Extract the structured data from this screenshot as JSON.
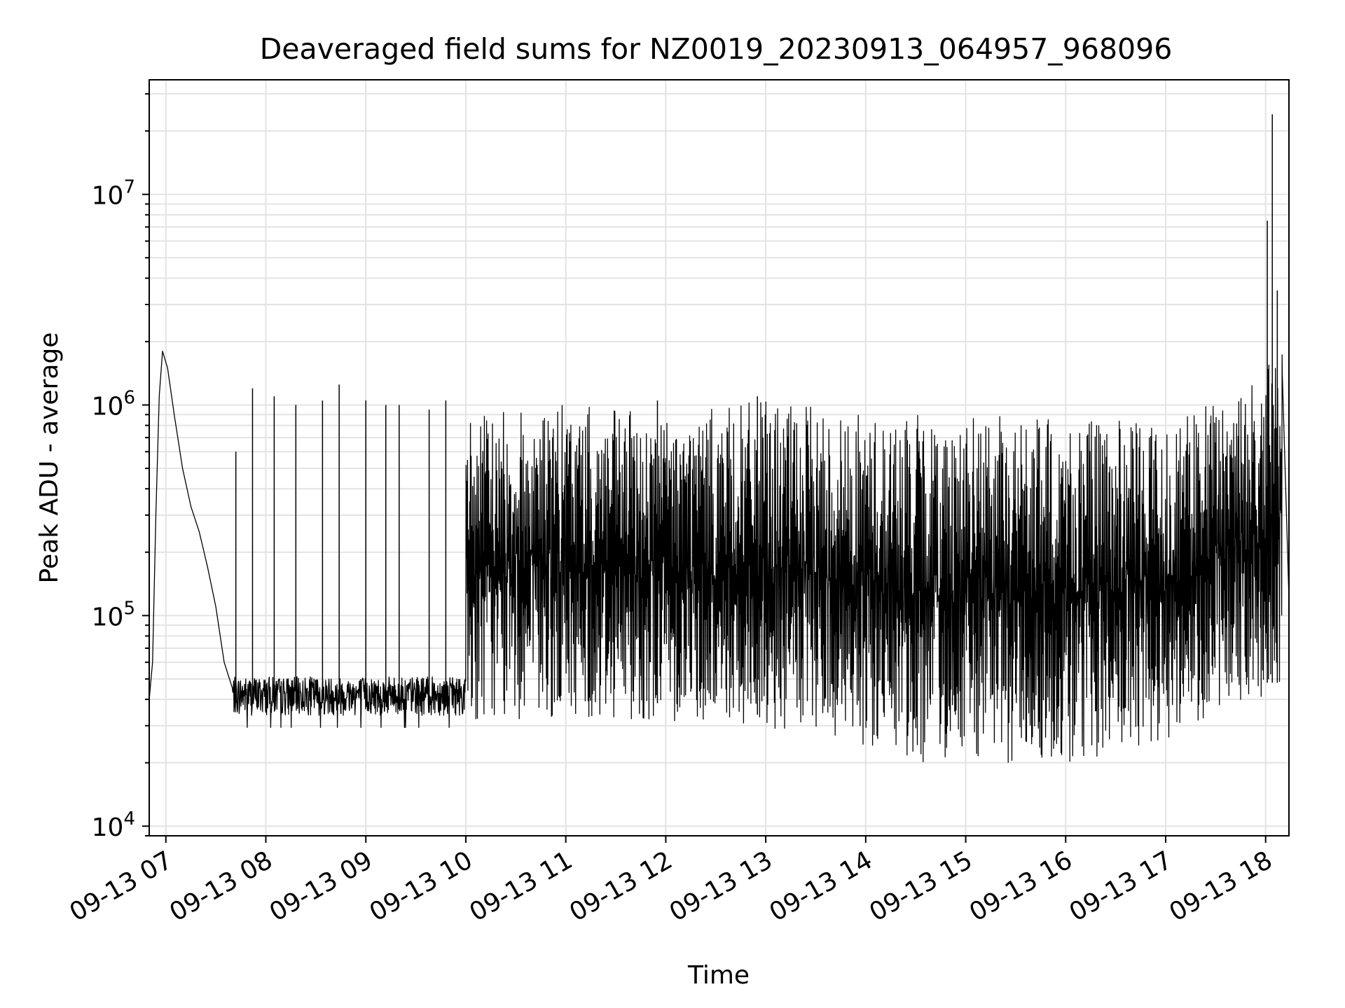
{
  "chart_data": {
    "type": "line",
    "title": "Deaveraged field sums for NZ0019_20230913_064957_968096",
    "xlabel": "Time",
    "ylabel": "Peak ADU - average",
    "y_scale": "log",
    "ylim": [
      9000,
      35000000
    ],
    "xlim": [
      "2023-09-13 06:50",
      "2023-09-13 18:14"
    ],
    "grid": true,
    "line_color": "#000000",
    "x_ticks": [
      "09-13 07",
      "09-13 08",
      "09-13 09",
      "09-13 10",
      "09-13 11",
      "09-13 12",
      "09-13 13",
      "09-13 14",
      "09-13 15",
      "09-13 16",
      "09-13 17",
      "09-13 18"
    ],
    "y_ticks": [
      {
        "value": 10000,
        "base": "10",
        "exp": "4"
      },
      {
        "value": 100000,
        "base": "10",
        "exp": "5"
      },
      {
        "value": 1000000,
        "base": "10",
        "exp": "6"
      },
      {
        "value": 10000000,
        "base": "10",
        "exp": "7"
      }
    ],
    "series": [
      {
        "x": [
          "2023-09-13 06:50",
          "2023-09-13 06:52",
          "2023-09-13 06:54",
          "2023-09-13 06:56",
          "2023-09-13 06:58",
          "2023-09-13 07:01",
          "2023-09-13 07:05",
          "2023-09-13 07:10",
          "2023-09-13 07:15",
          "2023-09-13 07:20",
          "2023-09-13 07:25",
          "2023-09-13 07:30",
          "2023-09-13 07:35",
          "2023-09-13 07:40",
          "2023-09-13 08:00",
          "2023-09-13 08:30",
          "2023-09-13 09:00",
          "2023-09-13 09:30",
          "2023-09-13 09:50",
          "2023-09-13 10:00",
          "2023-09-13 10:30",
          "2023-09-13 11:00",
          "2023-09-13 11:30",
          "2023-09-13 12:00",
          "2023-09-13 12:30",
          "2023-09-13 13:00",
          "2023-09-13 13:30",
          "2023-09-13 14:00",
          "2023-09-13 14:30",
          "2023-09-13 15:00",
          "2023-09-13 15:30",
          "2023-09-13 16:00",
          "2023-09-13 16:30",
          "2023-09-13 17:00",
          "2023-09-13 17:20",
          "2023-09-13 17:30",
          "2023-09-13 17:45",
          "2023-09-13 17:55",
          "2023-09-13 18:00",
          "2023-09-13 18:05",
          "2023-09-13 18:10",
          "2023-09-13 18:14"
        ],
        "values": [
          40000,
          60000,
          300000,
          1100000,
          1800000,
          1500000,
          900000,
          500000,
          330000,
          250000,
          170000,
          110000,
          60000,
          45000,
          42000,
          42000,
          41000,
          40000,
          38000,
          45000,
          300000,
          250000,
          230000,
          200000,
          210000,
          230000,
          200000,
          150000,
          130000,
          120000,
          120000,
          120000,
          130000,
          200000,
          180000,
          400000,
          600000,
          800000,
          1200000,
          1300000,
          1400000,
          120000
        ]
      }
    ],
    "spikes": [
      {
        "x": "2023-09-13 07:42",
        "y": 600000
      },
      {
        "x": "2023-09-13 07:52",
        "y": 1200000
      },
      {
        "x": "2023-09-13 08:05",
        "y": 1100000
      },
      {
        "x": "2023-09-13 08:18",
        "y": 1000000
      },
      {
        "x": "2023-09-13 08:34",
        "y": 1050000
      },
      {
        "x": "2023-09-13 08:44",
        "y": 1250000
      },
      {
        "x": "2023-09-13 09:00",
        "y": 1050000
      },
      {
        "x": "2023-09-13 09:12",
        "y": 1000000
      },
      {
        "x": "2023-09-13 09:20",
        "y": 1000000
      },
      {
        "x": "2023-09-13 09:38",
        "y": 950000
      },
      {
        "x": "2023-09-13 09:48",
        "y": 1050000
      },
      {
        "x": "2023-09-13 11:55",
        "y": 1050000
      },
      {
        "x": "2023-09-13 12:55",
        "y": 1100000
      },
      {
        "x": "2023-09-13 18:01",
        "y": 7500000
      },
      {
        "x": "2023-09-13 18:04",
        "y": 24000000
      },
      {
        "x": "2023-09-13 18:07",
        "y": 3500000
      }
    ],
    "noise_floor": [
      {
        "x": "2023-09-13 07:40",
        "y": 32000
      },
      {
        "x": "2023-09-13 10:00",
        "y": 32000
      },
      {
        "x": "2023-09-13 12:00",
        "y": 32000
      },
      {
        "x": "2023-09-13 13:30",
        "y": 26000
      },
      {
        "x": "2023-09-13 14:30",
        "y": 20000
      },
      {
        "x": "2023-09-13 16:00",
        "y": 20000
      },
      {
        "x": "2023-09-13 17:00",
        "y": 25000
      },
      {
        "x": "2023-09-13 17:40",
        "y": 40000
      }
    ],
    "noise_ceiling": [
      {
        "x": "2023-09-13 07:40",
        "y": 55000
      },
      {
        "x": "2023-09-13 09:50",
        "y": 55000
      },
      {
        "x": "2023-09-13 10:00",
        "y": 900000
      },
      {
        "x": "2023-09-13 11:00",
        "y": 1000000
      },
      {
        "x": "2023-09-13 12:00",
        "y": 900000
      },
      {
        "x": "2023-09-13 13:00",
        "y": 1050000
      },
      {
        "x": "2023-09-13 14:00",
        "y": 900000
      },
      {
        "x": "2023-09-13 15:00",
        "y": 900000
      },
      {
        "x": "2023-09-13 16:00",
        "y": 850000
      },
      {
        "x": "2023-09-13 17:00",
        "y": 850000
      },
      {
        "x": "2023-09-13 17:40",
        "y": 1100000
      },
      {
        "x": "2023-09-13 18:10",
        "y": 1800000
      }
    ],
    "random_seed": 7
  }
}
